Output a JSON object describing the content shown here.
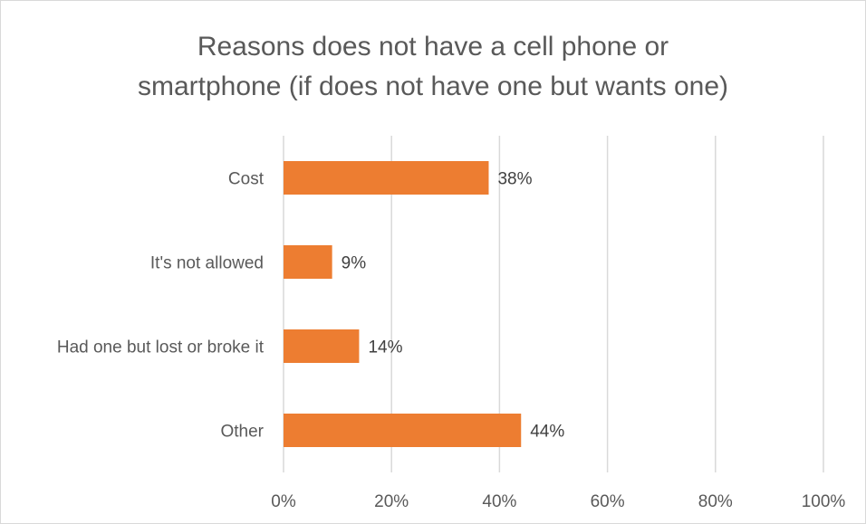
{
  "chart_data": {
    "type": "bar",
    "orientation": "horizontal",
    "title": "Reasons does not have a cell phone or smartphone (if does not have one but wants one)",
    "title_lines": [
      "Reasons does not have a cell phone or",
      "smartphone (if does not have one but wants one)"
    ],
    "categories": [
      "Cost",
      "It's not allowed",
      "Had one but lost or broke it",
      "Other"
    ],
    "values": [
      38,
      9,
      14,
      44
    ],
    "data_labels": [
      "38%",
      "9%",
      "14%",
      "44%"
    ],
    "xlim": [
      0,
      100
    ],
    "x_ticks": [
      0,
      20,
      40,
      60,
      80,
      100
    ],
    "x_tick_labels": [
      "0%",
      "20%",
      "40%",
      "60%",
      "80%",
      "100%"
    ],
    "grid": true,
    "legend": false,
    "bar_color": "#ED7D31",
    "xlabel": "",
    "ylabel": ""
  }
}
